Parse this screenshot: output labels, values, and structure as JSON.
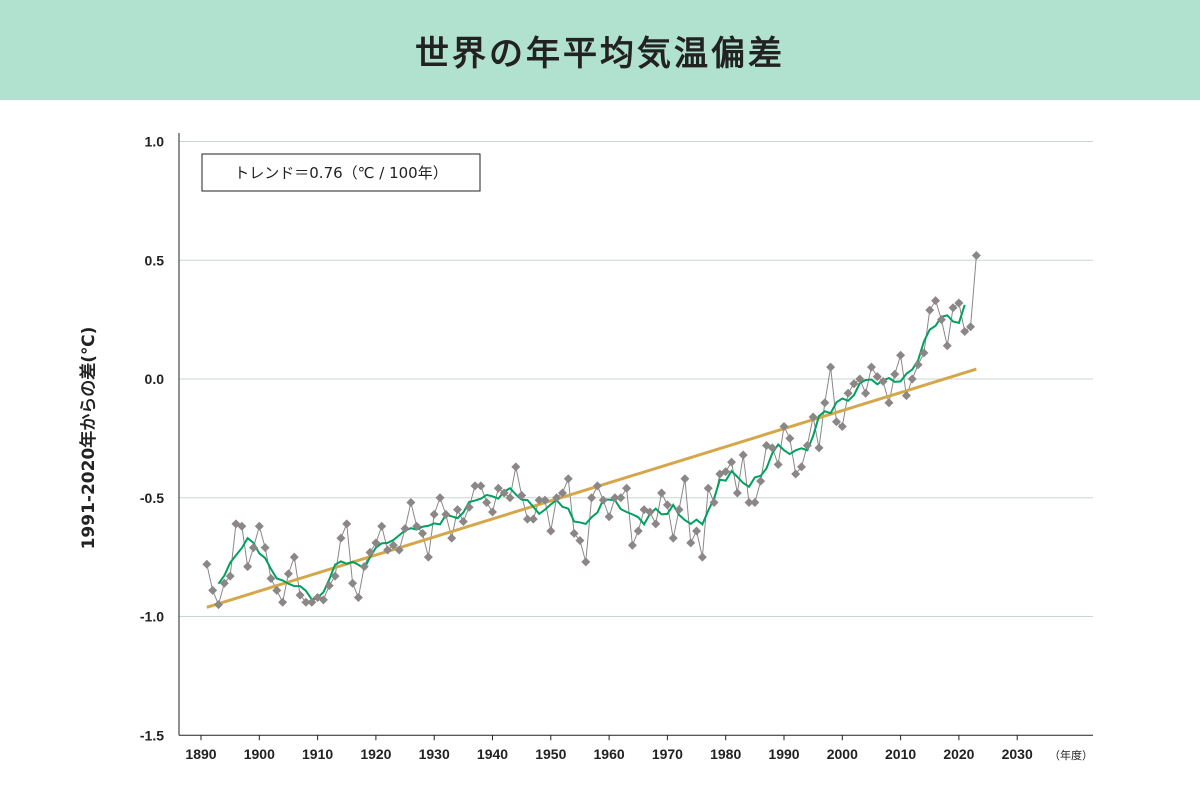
{
  "header": {
    "title": "世界の年平均気温偏差"
  },
  "chart_data": {
    "type": "line",
    "title": "世界の年平均気温偏差",
    "ylabel": "1991-2020年からの差(℃)",
    "xunit": "（年度）",
    "legend_text": "トレンド＝0.76（℃ / 100年）",
    "trend_per_100yr": 0.76,
    "xlim": [
      1885,
      2038
    ],
    "ylim": [
      -1.5,
      1.0
    ],
    "yticks": [
      1.0,
      0.5,
      0.0,
      -0.5,
      -1.0,
      -1.5
    ],
    "ytick_labels": [
      "1.0",
      "0.5",
      "0.0",
      "-0.5",
      "-1.0",
      "-1.5"
    ],
    "xticks": [
      1890,
      1900,
      1910,
      1920,
      1930,
      1940,
      1950,
      1960,
      1970,
      1980,
      1990,
      2000,
      2010,
      2020,
      2030
    ],
    "xtick_labels": [
      "1890",
      "1900",
      "1910",
      "1920",
      "1930",
      "1940",
      "1950",
      "1960",
      "1970",
      "1980",
      "1990",
      "2000",
      "2010",
      "2020",
      "2030"
    ],
    "grid": true,
    "legend_placement": "top-left",
    "running_mean_window": 5,
    "colors": {
      "annual": "#8c8787",
      "running_mean": "#00a060",
      "trend": "#d4a84a",
      "grid": "#c9d6d3"
    },
    "x_start": 1891,
    "values": [
      -0.78,
      -0.89,
      -0.95,
      -0.86,
      -0.83,
      -0.61,
      -0.62,
      -0.79,
      -0.71,
      -0.62,
      -0.71,
      -0.84,
      -0.89,
      -0.94,
      -0.82,
      -0.75,
      -0.91,
      -0.94,
      -0.94,
      -0.92,
      -0.93,
      -0.87,
      -0.83,
      -0.67,
      -0.61,
      -0.86,
      -0.92,
      -0.79,
      -0.73,
      -0.69,
      -0.62,
      -0.72,
      -0.7,
      -0.72,
      -0.63,
      -0.52,
      -0.62,
      -0.65,
      -0.75,
      -0.57,
      -0.5,
      -0.57,
      -0.67,
      -0.55,
      -0.6,
      -0.54,
      -0.45,
      -0.45,
      -0.52,
      -0.56,
      -0.46,
      -0.48,
      -0.5,
      -0.37,
      -0.49,
      -0.59,
      -0.59,
      -0.51,
      -0.51,
      -0.64,
      -0.5,
      -0.48,
      -0.42,
      -0.65,
      -0.68,
      -0.77,
      -0.5,
      -0.45,
      -0.51,
      -0.58,
      -0.5,
      -0.5,
      -0.46,
      -0.7,
      -0.64,
      -0.55,
      -0.56,
      -0.61,
      -0.48,
      -0.53,
      -0.67,
      -0.55,
      -0.42,
      -0.69,
      -0.64,
      -0.75,
      -0.46,
      -0.52,
      -0.4,
      -0.39,
      -0.35,
      -0.48,
      -0.32,
      -0.52,
      -0.52,
      -0.43,
      -0.28,
      -0.29,
      -0.36,
      -0.2,
      -0.25,
      -0.4,
      -0.37,
      -0.28,
      -0.16,
      -0.29,
      -0.1,
      0.05,
      -0.18,
      -0.2,
      -0.06,
      -0.02,
      0.0,
      -0.06,
      0.05,
      0.01,
      -0.01,
      -0.1,
      0.02,
      0.1,
      -0.07,
      0.0,
      0.06,
      0.11,
      0.29,
      0.33,
      0.25,
      0.14,
      0.3,
      0.32,
      0.2,
      0.22,
      0.52
    ]
  }
}
